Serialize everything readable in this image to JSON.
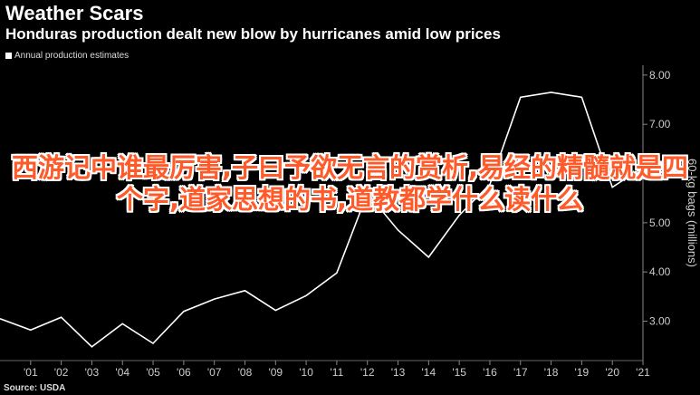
{
  "header": {
    "title": "Weather Scars",
    "subtitle": "Honduras production dealt new blow by hurricanes amid low prices"
  },
  "legend": {
    "label": "Annual production estimates"
  },
  "source": "Source: USDA",
  "overlay_text": "西游记中谁最厉害,子曰予欲无言的赏析,易经的精髓就是四个字,道家思想的书,道教都学什么读什么",
  "chart_data": {
    "type": "line",
    "x": [
      2000,
      2001,
      2002,
      2003,
      2004,
      2005,
      2006,
      2007,
      2008,
      2009,
      2010,
      2011,
      2012,
      2013,
      2014,
      2015,
      2016,
      2017,
      2018,
      2019,
      2020,
      2021
    ],
    "x_tick_labels": [
      "'01",
      "'02",
      "'03",
      "'04",
      "'05",
      "'06",
      "'07",
      "'08",
      "'09",
      "'10",
      "'11",
      "'12",
      "'13",
      "'14",
      "'15",
      "'16",
      "'17",
      "'18",
      "'19",
      "'20",
      "'21"
    ],
    "values": [
      3.05,
      2.82,
      3.08,
      2.48,
      2.95,
      2.55,
      3.2,
      3.45,
      3.62,
      3.22,
      3.52,
      3.98,
      5.6,
      4.85,
      4.3,
      5.15,
      5.78,
      7.55,
      7.65,
      7.55,
      5.72,
      6.13
    ],
    "ylabel": "60-kg bags (millions)",
    "y_ticks": [
      "3.00",
      "4.00",
      "5.00",
      "6.00",
      "7.00",
      "8.00"
    ],
    "ylim": [
      2.2,
      8.2
    ],
    "last_value_label": "6.13",
    "line_color": "#ffffff",
    "background": "#000000"
  }
}
